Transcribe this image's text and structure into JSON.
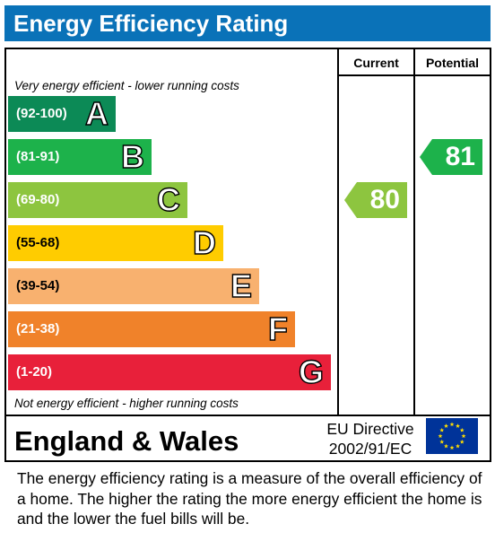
{
  "title": "Energy Efficiency Rating",
  "columns": {
    "current": "Current",
    "potential": "Potential"
  },
  "notes": {
    "top": "Very energy efficient - lower running costs",
    "bottom": "Not energy efficient - higher running costs"
  },
  "chart_data": {
    "type": "bar",
    "categories": [
      "A",
      "B",
      "C",
      "D",
      "E",
      "F",
      "G"
    ],
    "ranges": [
      "(92-100)",
      "(81-91)",
      "(69-80)",
      "(55-68)",
      "(39-54)",
      "(21-38)",
      "(1-20)"
    ],
    "colors": [
      "#0c8a56",
      "#1db24b",
      "#8dc53f",
      "#ffcc00",
      "#f8b16f",
      "#f0822a",
      "#e8203a"
    ],
    "current": {
      "value": 80,
      "band": "C",
      "color": "#8dc53f"
    },
    "potential": {
      "value": 81,
      "band": "B",
      "color": "#1db24b"
    }
  },
  "footer": {
    "region": "England & Wales",
    "directive_line1": "EU Directive",
    "directive_line2": "2002/91/EC"
  },
  "description": "The energy efficiency rating is a measure of the overall efficiency of a home.  The higher the rating the more energy efficient the home is and the lower the fuel bills will be."
}
